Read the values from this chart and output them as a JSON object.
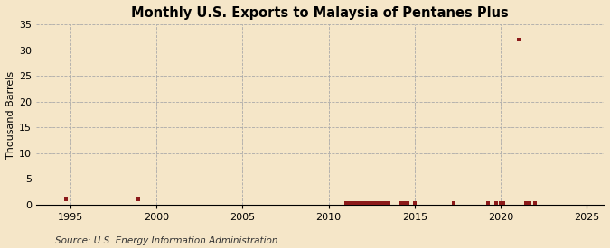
{
  "title": "Monthly U.S. Exports to Malaysia of Pentanes Plus",
  "ylabel": "Thousand Barrels",
  "source": "Source: U.S. Energy Information Administration",
  "background_color": "#f5e6c8",
  "plot_bg_color": "#f5e6c8",
  "marker_color": "#8b1a1a",
  "xlim": [
    1993,
    2026
  ],
  "ylim": [
    0,
    35
  ],
  "yticks": [
    0,
    5,
    10,
    15,
    20,
    25,
    30,
    35
  ],
  "xticks": [
    1995,
    2000,
    2005,
    2010,
    2015,
    2020,
    2025
  ],
  "data_points": [
    [
      1994.75,
      1
    ],
    [
      1998.92,
      1
    ],
    [
      2011.0,
      0.4
    ],
    [
      2011.17,
      0.4
    ],
    [
      2011.33,
      0.4
    ],
    [
      2011.5,
      0.4
    ],
    [
      2011.67,
      0.4
    ],
    [
      2011.83,
      0.4
    ],
    [
      2012.0,
      0.4
    ],
    [
      2012.17,
      0.4
    ],
    [
      2012.33,
      0.4
    ],
    [
      2012.5,
      0.4
    ],
    [
      2012.67,
      0.4
    ],
    [
      2012.83,
      0.4
    ],
    [
      2013.0,
      0.4
    ],
    [
      2013.17,
      0.4
    ],
    [
      2013.33,
      0.4
    ],
    [
      2013.5,
      0.4
    ],
    [
      2014.25,
      0.4
    ],
    [
      2014.42,
      0.4
    ],
    [
      2014.58,
      0.4
    ],
    [
      2015.0,
      0.4
    ],
    [
      2017.25,
      0.4
    ],
    [
      2019.25,
      0.4
    ],
    [
      2019.75,
      0.4
    ],
    [
      2020.0,
      0.4
    ],
    [
      2020.17,
      0.4
    ],
    [
      2021.08,
      32
    ],
    [
      2021.5,
      0.4
    ],
    [
      2021.67,
      0.4
    ],
    [
      2022.0,
      0.4
    ]
  ]
}
